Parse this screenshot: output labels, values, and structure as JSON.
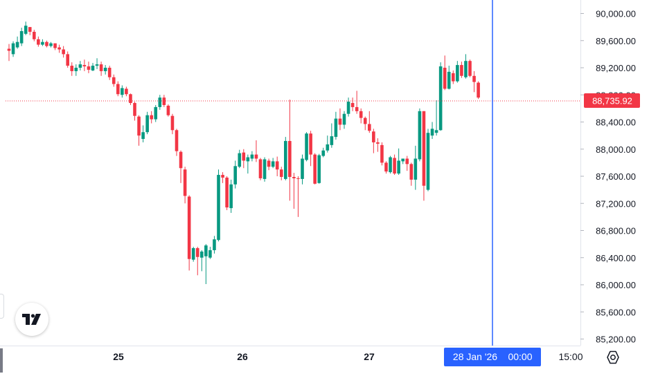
{
  "chart_data": {
    "type": "candlestick",
    "y_ticks": [
      "90,000.00",
      "89,600.00",
      "89,200.00",
      "88,800.00",
      "88,400.00",
      "88,000.00",
      "87,600.00",
      "87,200.00",
      "86,800.00",
      "86,400.00",
      "86,000.00",
      "85,600.00",
      "85,200.00"
    ],
    "x_ticks": [
      "25",
      "26",
      "27",
      "15:00"
    ],
    "ylim": [
      85100,
      90200
    ],
    "last_price": 88735.92,
    "last_price_label": "88,735.92",
    "crosshair_label": {
      "date": "28 Jan '26",
      "time": "00:00"
    },
    "candles": [
      [
        89480,
        89450,
        89300,
        89550
      ],
      [
        89400,
        89560,
        89360,
        89590
      ],
      [
        89500,
        89580,
        89480,
        89660
      ],
      [
        89560,
        89740,
        89520,
        89790
      ],
      [
        89700,
        89820,
        89680,
        89880
      ],
      [
        89800,
        89730,
        89680,
        89800
      ],
      [
        89730,
        89620,
        89590,
        89760
      ],
      [
        89620,
        89540,
        89510,
        89660
      ],
      [
        89540,
        89580,
        89520,
        89620
      ],
      [
        89580,
        89520,
        89500,
        89600
      ],
      [
        89520,
        89560,
        89500,
        89580
      ],
      [
        89560,
        89490,
        89460,
        89560
      ],
      [
        89500,
        89470,
        89420,
        89540
      ],
      [
        89470,
        89400,
        89350,
        89520
      ],
      [
        89400,
        89230,
        89200,
        89440
      ],
      [
        89230,
        89150,
        89080,
        89280
      ],
      [
        89150,
        89200,
        89080,
        89250
      ],
      [
        89200,
        89250,
        89160,
        89300
      ],
      [
        89240,
        89220,
        89150,
        89320
      ],
      [
        89220,
        89170,
        89120,
        89290
      ],
      [
        89160,
        89230,
        89150,
        89270
      ],
      [
        89230,
        89250,
        89180,
        89340
      ],
      [
        89250,
        89150,
        89080,
        89290
      ],
      [
        89150,
        89200,
        89100,
        89240
      ],
      [
        89200,
        89060,
        89020,
        89230
      ],
      [
        89060,
        88960,
        88920,
        89100
      ],
      [
        88960,
        88810,
        88780,
        89000
      ],
      [
        88800,
        88900,
        88760,
        88940
      ],
      [
        88890,
        88810,
        88780,
        88920
      ],
      [
        88810,
        88680,
        88650,
        88820
      ],
      [
        88680,
        88490,
        88420,
        88700
      ],
      [
        88480,
        88200,
        88050,
        88500
      ],
      [
        88150,
        88250,
        88100,
        88350
      ],
      [
        88250,
        88500,
        88220,
        88550
      ],
      [
        88500,
        88440,
        88380,
        88560
      ],
      [
        88440,
        88620,
        88400,
        88650
      ],
      [
        88620,
        88760,
        88580,
        88800
      ],
      [
        88760,
        88650,
        88620,
        88800
      ],
      [
        88640,
        88500,
        88480,
        88660
      ],
      [
        88490,
        88280,
        88220,
        88520
      ],
      [
        88280,
        87970,
        87900,
        88300
      ],
      [
        87960,
        87720,
        87500,
        87980
      ],
      [
        87700,
        87310,
        87200,
        87740
      ],
      [
        87300,
        86380,
        86210,
        87320
      ],
      [
        86370,
        86540,
        86340,
        86560
      ],
      [
        86540,
        86410,
        86140,
        86560
      ],
      [
        86400,
        86490,
        86200,
        86510
      ],
      [
        86420,
        86580,
        86010,
        86600
      ],
      [
        86400,
        86510,
        86380,
        86560
      ],
      [
        86510,
        86670,
        86460,
        86720
      ],
      [
        86660,
        87620,
        86640,
        87700
      ],
      [
        87620,
        87580,
        87500,
        87660
      ],
      [
        87580,
        87140,
        87100,
        87600
      ],
      [
        87130,
        87480,
        87060,
        87550
      ],
      [
        87480,
        87750,
        87420,
        87830
      ],
      [
        87740,
        87940,
        87720,
        87990
      ],
      [
        87950,
        87830,
        87720,
        88000
      ],
      [
        87820,
        87880,
        87640,
        87920
      ],
      [
        87860,
        87920,
        87820,
        87970
      ],
      [
        87920,
        87860,
        87810,
        88130
      ],
      [
        87850,
        87570,
        87540,
        87870
      ],
      [
        87560,
        87850,
        87520,
        87880
      ],
      [
        87830,
        87740,
        87690,
        87860
      ],
      [
        87740,
        87820,
        87720,
        87870
      ],
      [
        87820,
        87700,
        87600,
        87890
      ],
      [
        87700,
        87590,
        87540,
        87740
      ],
      [
        87560,
        88120,
        87540,
        88180
      ],
      [
        88120,
        87590,
        87240,
        88730
      ],
      [
        87590,
        87570,
        87120,
        87650
      ],
      [
        87570,
        87560,
        87000,
        87600
      ],
      [
        87560,
        87860,
        87480,
        87920
      ],
      [
        87840,
        88230,
        87820,
        88250
      ],
      [
        88230,
        87920,
        87750,
        88270
      ],
      [
        87920,
        87490,
        87480,
        87940
      ],
      [
        87500,
        87910,
        87490,
        87930
      ],
      [
        87900,
        87980,
        87880,
        88020
      ],
      [
        87980,
        88070,
        87950,
        88200
      ],
      [
        88060,
        88190,
        88020,
        88380
      ],
      [
        88180,
        88450,
        88140,
        88550
      ],
      [
        88450,
        88360,
        88280,
        88600
      ],
      [
        88360,
        88520,
        88300,
        88560
      ],
      [
        88520,
        88700,
        88480,
        88760
      ],
      [
        88680,
        88620,
        88560,
        88760
      ],
      [
        88620,
        88560,
        88520,
        88860
      ],
      [
        88560,
        88460,
        88380,
        88600
      ],
      [
        88460,
        88370,
        88280,
        88480
      ],
      [
        88370,
        88270,
        88240,
        88560
      ],
      [
        88260,
        88100,
        87940,
        88300
      ],
      [
        88100,
        88080,
        87960,
        88160
      ],
      [
        88060,
        87800,
        87760,
        88100
      ],
      [
        87800,
        87670,
        87640,
        87820
      ],
      [
        87660,
        87880,
        87640,
        87900
      ],
      [
        87870,
        87640,
        87620,
        87920
      ],
      [
        87640,
        87830,
        87620,
        88010
      ],
      [
        87820,
        87860,
        87780,
        87860
      ],
      [
        87860,
        87780,
        87680,
        87900
      ],
      [
        87780,
        87550,
        87460,
        87800
      ],
      [
        87550,
        87860,
        87400,
        88050
      ],
      [
        87850,
        88560,
        87820,
        88600
      ],
      [
        88560,
        87460,
        87240,
        88560
      ],
      [
        87400,
        88240,
        87380,
        88300
      ],
      [
        88200,
        88300,
        88150,
        88400
      ],
      [
        88240,
        88280,
        88200,
        88720
      ],
      [
        88280,
        89220,
        88270,
        89280
      ],
      [
        89200,
        88890,
        88870,
        89380
      ],
      [
        88890,
        89140,
        88880,
        89230
      ],
      [
        89120,
        89000,
        88960,
        89160
      ],
      [
        89000,
        89240,
        88980,
        89300
      ],
      [
        89240,
        89080,
        89050,
        89290
      ],
      [
        89060,
        89300,
        89040,
        89400
      ],
      [
        89300,
        89080,
        89060,
        89320
      ],
      [
        89080,
        88990,
        88840,
        89150
      ],
      [
        88980,
        88760,
        88740,
        89000
      ]
    ]
  },
  "colors": {
    "up": "#089981",
    "down": "#f23645",
    "crosshair": "#2962ff",
    "price_line": "#f23645",
    "text": "#131722"
  }
}
